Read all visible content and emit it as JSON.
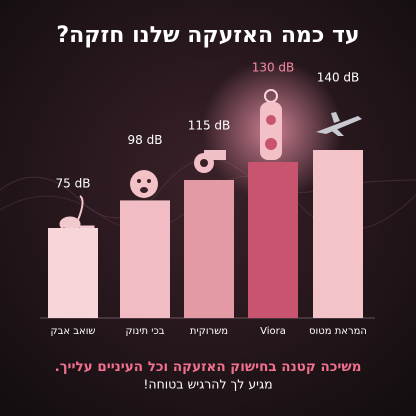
{
  "chart_data": {
    "type": "bar",
    "title": "עד כמה האזעקה שלנו חזקה?",
    "categories": [
      "שואב אבק",
      "בכי תינוק",
      "משרוקית",
      "Viora",
      "המראת מטוס"
    ],
    "values": [
      75,
      98,
      115,
      130,
      140
    ],
    "value_labels": [
      "75 dB",
      "98 dB",
      "115 dB",
      "130 dB",
      "140 dB"
    ],
    "colors": [
      "#f6d6d8",
      "#f1bcc3",
      "#e39aa4",
      "#c95470",
      "#f3c3c8"
    ],
    "label_colors": [
      "#ffffff",
      "#ffffff",
      "#ffffff",
      "#f48aa2",
      "#ffffff"
    ]
  },
  "footer": {
    "headline": "משיכה קטנה בחישוק האזעקה וכל העיניים עלייך.",
    "subline": "מגיע לך להרגיש בטוחה!"
  }
}
